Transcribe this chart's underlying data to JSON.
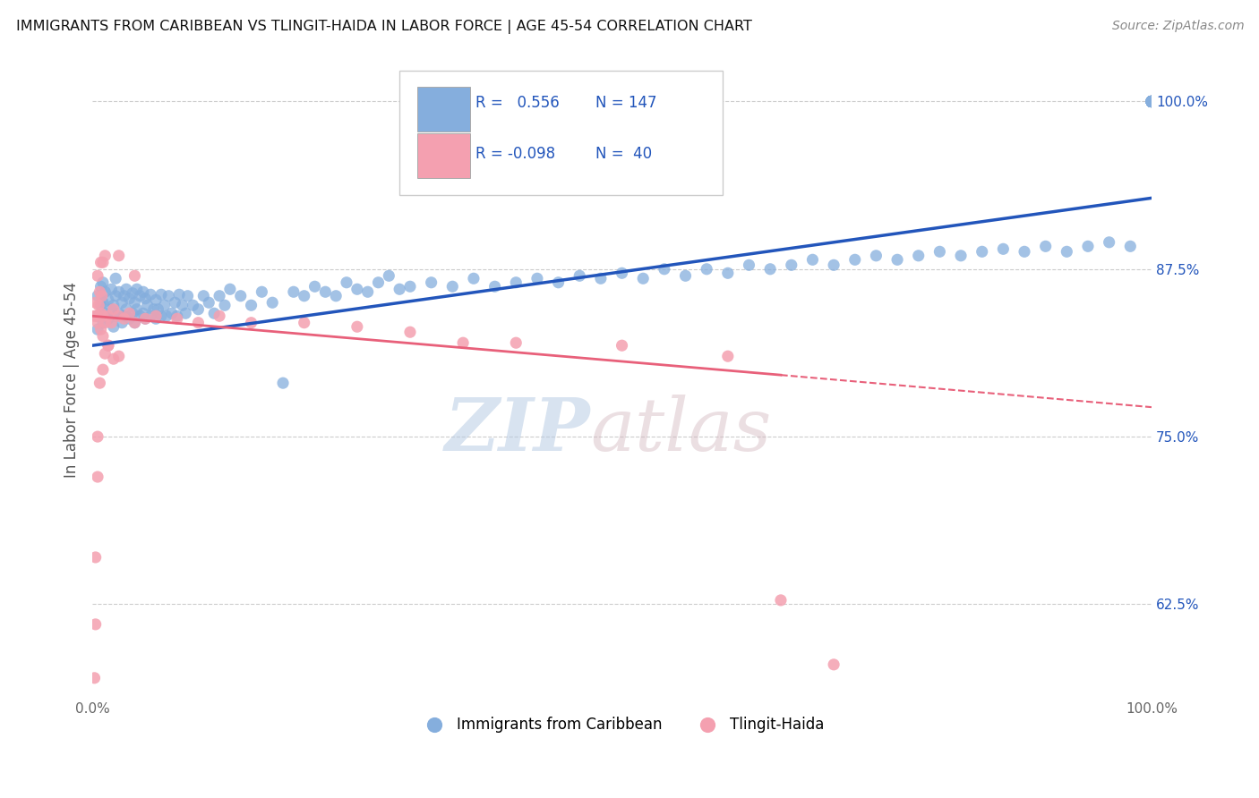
{
  "title": "IMMIGRANTS FROM CARIBBEAN VS TLINGIT-HAIDA IN LABOR FORCE | AGE 45-54 CORRELATION CHART",
  "source": "Source: ZipAtlas.com",
  "ylabel": "In Labor Force | Age 45-54",
  "xlim": [
    0.0,
    1.0
  ],
  "ylim": [
    0.555,
    1.03
  ],
  "y_tick_right": [
    0.625,
    0.75,
    0.875,
    1.0
  ],
  "y_tick_right_labels": [
    "62.5%",
    "75.0%",
    "87.5%",
    "100.0%"
  ],
  "legend_r1": "R =   0.556",
  "legend_n1": "N = 147",
  "legend_r2": "R = -0.098",
  "legend_n2": "N =  40",
  "blue_color": "#85AEDD",
  "pink_color": "#F4A0B0",
  "line_blue": "#2255BB",
  "line_pink": "#E8607A",
  "watermark_zip": "ZIP",
  "watermark_atlas": "atlas",
  "blue_line_x0": 0.0,
  "blue_line_x1": 1.0,
  "blue_line_y0": 0.818,
  "blue_line_y1": 0.928,
  "pink_line_x0": 0.0,
  "pink_line_x1": 0.65,
  "pink_line_x1_dash": 1.0,
  "pink_line_y0": 0.84,
  "pink_line_y1": 0.796,
  "pink_line_y1_dash": 0.772,
  "blue_scatter_x": [
    0.005,
    0.005,
    0.005,
    0.008,
    0.008,
    0.01,
    0.01,
    0.01,
    0.012,
    0.012,
    0.015,
    0.015,
    0.018,
    0.018,
    0.02,
    0.02,
    0.022,
    0.022,
    0.022,
    0.025,
    0.025,
    0.028,
    0.028,
    0.03,
    0.03,
    0.032,
    0.032,
    0.035,
    0.035,
    0.038,
    0.038,
    0.04,
    0.04,
    0.042,
    0.042,
    0.045,
    0.045,
    0.048,
    0.048,
    0.05,
    0.05,
    0.052,
    0.055,
    0.055,
    0.058,
    0.06,
    0.06,
    0.062,
    0.065,
    0.065,
    0.068,
    0.07,
    0.072,
    0.075,
    0.078,
    0.08,
    0.082,
    0.085,
    0.088,
    0.09,
    0.095,
    0.1,
    0.105,
    0.11,
    0.115,
    0.12,
    0.125,
    0.13,
    0.14,
    0.15,
    0.16,
    0.17,
    0.18,
    0.19,
    0.2,
    0.21,
    0.22,
    0.23,
    0.24,
    0.25,
    0.26,
    0.27,
    0.28,
    0.29,
    0.3,
    0.32,
    0.34,
    0.36,
    0.38,
    0.4,
    0.42,
    0.44,
    0.46,
    0.48,
    0.5,
    0.52,
    0.54,
    0.56,
    0.58,
    0.6,
    0.62,
    0.64,
    0.66,
    0.68,
    0.7,
    0.72,
    0.74,
    0.76,
    0.78,
    0.8,
    0.82,
    0.84,
    0.86,
    0.88,
    0.9,
    0.92,
    0.94,
    0.96,
    0.98,
    1.0,
    1.0,
    1.0,
    1.0,
    1.0,
    1.0,
    1.0,
    1.0,
    1.0,
    1.0,
    1.0,
    1.0,
    1.0,
    1.0,
    1.0,
    1.0,
    1.0,
    1.0,
    1.0,
    1.0,
    1.0,
    1.0,
    1.0,
    1.0,
    1.0,
    1.0,
    1.0,
    1.0
  ],
  "blue_scatter_y": [
    0.84,
    0.855,
    0.83,
    0.848,
    0.862,
    0.835,
    0.85,
    0.865,
    0.842,
    0.858,
    0.838,
    0.852,
    0.845,
    0.86,
    0.832,
    0.848,
    0.84,
    0.855,
    0.868,
    0.842,
    0.858,
    0.835,
    0.85,
    0.84,
    0.855,
    0.845,
    0.86,
    0.838,
    0.853,
    0.842,
    0.857,
    0.835,
    0.85,
    0.845,
    0.86,
    0.84,
    0.855,
    0.842,
    0.858,
    0.838,
    0.853,
    0.848,
    0.84,
    0.856,
    0.845,
    0.838,
    0.852,
    0.845,
    0.84,
    0.856,
    0.848,
    0.84,
    0.855,
    0.842,
    0.85,
    0.84,
    0.856,
    0.848,
    0.842,
    0.855,
    0.848,
    0.845,
    0.855,
    0.85,
    0.842,
    0.855,
    0.848,
    0.86,
    0.855,
    0.848,
    0.858,
    0.85,
    0.79,
    0.858,
    0.855,
    0.862,
    0.858,
    0.855,
    0.865,
    0.86,
    0.858,
    0.865,
    0.87,
    0.86,
    0.862,
    0.865,
    0.862,
    0.868,
    0.862,
    0.865,
    0.868,
    0.865,
    0.87,
    0.868,
    0.872,
    0.868,
    0.875,
    0.87,
    0.875,
    0.872,
    0.878,
    0.875,
    0.878,
    0.882,
    0.878,
    0.882,
    0.885,
    0.882,
    0.885,
    0.888,
    0.885,
    0.888,
    0.89,
    0.888,
    0.892,
    0.888,
    0.892,
    0.895,
    0.892,
    1.0,
    1.0,
    1.0,
    1.0,
    1.0,
    1.0,
    1.0,
    1.0,
    1.0,
    1.0,
    1.0,
    1.0,
    1.0,
    1.0,
    1.0,
    1.0,
    1.0,
    1.0,
    1.0,
    1.0,
    1.0,
    1.0,
    1.0,
    1.0,
    1.0,
    1.0,
    1.0,
    1.0
  ],
  "pink_scatter_x": [
    0.002,
    0.003,
    0.004,
    0.005,
    0.006,
    0.007,
    0.008,
    0.009,
    0.01,
    0.012,
    0.015,
    0.018,
    0.02,
    0.025,
    0.03,
    0.035,
    0.04,
    0.05,
    0.06,
    0.08,
    0.1,
    0.12,
    0.15,
    0.2,
    0.25,
    0.3,
    0.35,
    0.4,
    0.5,
    0.6,
    0.003,
    0.005,
    0.007,
    0.01,
    0.012,
    0.015,
    0.02,
    0.025,
    0.65,
    0.7
  ],
  "pink_scatter_y": [
    0.84,
    0.85,
    0.84,
    0.835,
    0.848,
    0.858,
    0.842,
    0.855,
    0.84,
    0.835,
    0.84,
    0.835,
    0.845,
    0.84,
    0.838,
    0.842,
    0.835,
    0.838,
    0.84,
    0.838,
    0.835,
    0.84,
    0.835,
    0.835,
    0.832,
    0.828,
    0.82,
    0.82,
    0.818,
    0.81,
    0.66,
    0.72,
    0.79,
    0.8,
    0.812,
    0.818,
    0.808,
    0.81,
    0.628,
    0.58
  ],
  "extra_pink_x": [
    0.002,
    0.003,
    0.005,
    0.008,
    0.01,
    0.015
  ],
  "extra_pink_y": [
    0.57,
    0.61,
    0.75,
    0.83,
    0.825,
    0.818
  ],
  "extra_pink2_x": [
    0.005,
    0.008,
    0.01,
    0.012,
    0.025,
    0.04
  ],
  "extra_pink2_y": [
    0.87,
    0.88,
    0.88,
    0.885,
    0.885,
    0.87
  ]
}
